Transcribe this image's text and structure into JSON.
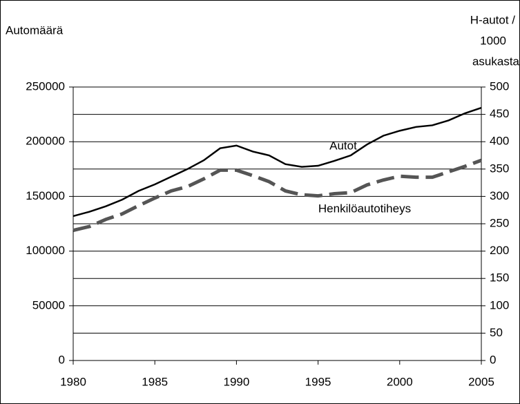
{
  "chart_data": {
    "type": "line",
    "ylabel": "Automäärä",
    "y2label": [
      "H-autot /",
      "1000",
      "asukasta"
    ],
    "x": [
      1980,
      1981,
      1982,
      1983,
      1984,
      1985,
      1986,
      1987,
      1988,
      1989,
      1990,
      1991,
      1992,
      1993,
      1994,
      1995,
      1996,
      1997,
      1998,
      1999,
      2000,
      2001,
      2002,
      2003,
      2004,
      2005
    ],
    "xlim": [
      1980,
      2005
    ],
    "xticks": [
      1980,
      1985,
      1990,
      1995,
      2000,
      2005
    ],
    "ylim": [
      0,
      250000
    ],
    "yticks": [
      0,
      50000,
      100000,
      150000,
      200000,
      250000
    ],
    "y2lim": [
      0,
      500
    ],
    "y2ticks": [
      0,
      50,
      100,
      150,
      200,
      250,
      300,
      350,
      400,
      450,
      500
    ],
    "grid": true,
    "series": [
      {
        "name": "Autot",
        "color": "#000000",
        "dash": "solid",
        "values": [
          132000,
          136000,
          141000,
          147000,
          155000,
          161000,
          168000,
          175000,
          183000,
          194000,
          196500,
          191000,
          187500,
          179500,
          177000,
          178000,
          182500,
          187500,
          197500,
          205500,
          210000,
          213500,
          215000,
          219500,
          226000,
          231000
        ]
      },
      {
        "name": "Henkilöautotiheys",
        "color": "#555555",
        "dash": "dashed",
        "axis": "y2",
        "values": [
          238,
          245,
          258,
          268,
          283,
          297,
          310,
          318,
          332,
          348,
          348,
          338,
          327,
          310,
          303,
          301,
          305,
          307,
          321,
          330,
          337,
          335,
          335,
          345,
          355,
          366
        ]
      }
    ]
  }
}
